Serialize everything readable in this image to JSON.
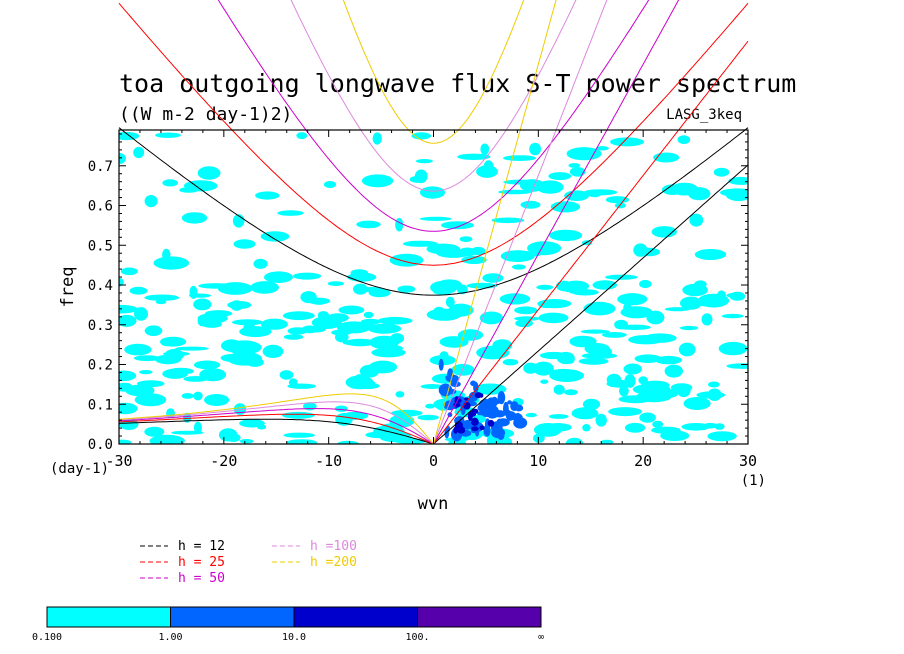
{
  "chart_data": {
    "type": "contour",
    "title": "toa outgoing longwave flux S-T power spectrum",
    "subtitle": "((W m-2 day-1)2)",
    "model_label": "LASG_3keq",
    "xlabel": "wvn",
    "ylabel": "freq",
    "x_unit_label": "(1)",
    "y_unit_label": "(day-1)",
    "xlim": [
      -30,
      30
    ],
    "ylim": [
      0,
      0.79
    ],
    "xticks": [
      -30,
      -20,
      -10,
      0,
      10,
      20,
      30
    ],
    "xtick_labels": [
      "-30",
      "-20",
      "-10",
      "0",
      "10",
      "20",
      "30"
    ],
    "yticks": [
      0,
      0.1,
      0.2,
      0.3,
      0.4,
      0.5,
      0.6,
      0.7
    ],
    "ytick_labels": [
      "0.0",
      "0.1",
      "0.2",
      "0.3",
      "0.4",
      "0.5",
      "0.6",
      "0.7"
    ],
    "dispersion_curves": [
      {
        "name": "h = 12",
        "h": 12,
        "color": "#000000"
      },
      {
        "name": "h = 25",
        "h": 25,
        "color": "#ff0000"
      },
      {
        "name": "h = 50",
        "h": 50,
        "color": "#cc00cc"
      },
      {
        "name": "h =100",
        "h": 100,
        "color": "#dd88dd"
      },
      {
        "name": "h =200",
        "h": 200,
        "color": "#eecc00"
      }
    ],
    "colorbar": {
      "levels": [
        "0.100",
        "1.00",
        "10.0",
        "100.",
        "∞"
      ],
      "colors": [
        "#00ffff",
        "#0066ff",
        "#0000cc",
        "#5500aa"
      ]
    },
    "filled_regions": [
      {
        "level": 0,
        "x": [
          -30,
          30
        ],
        "y": [
          0,
          0.78
        ],
        "description_values": [
          0.1,
          1.0
        ]
      },
      {
        "level": 1,
        "x": [
          0,
          10
        ],
        "y": [
          0,
          0.22
        ]
      },
      {
        "level": 2,
        "x": [
          1,
          6
        ],
        "y": [
          0.02,
          0.15
        ]
      }
    ]
  }
}
